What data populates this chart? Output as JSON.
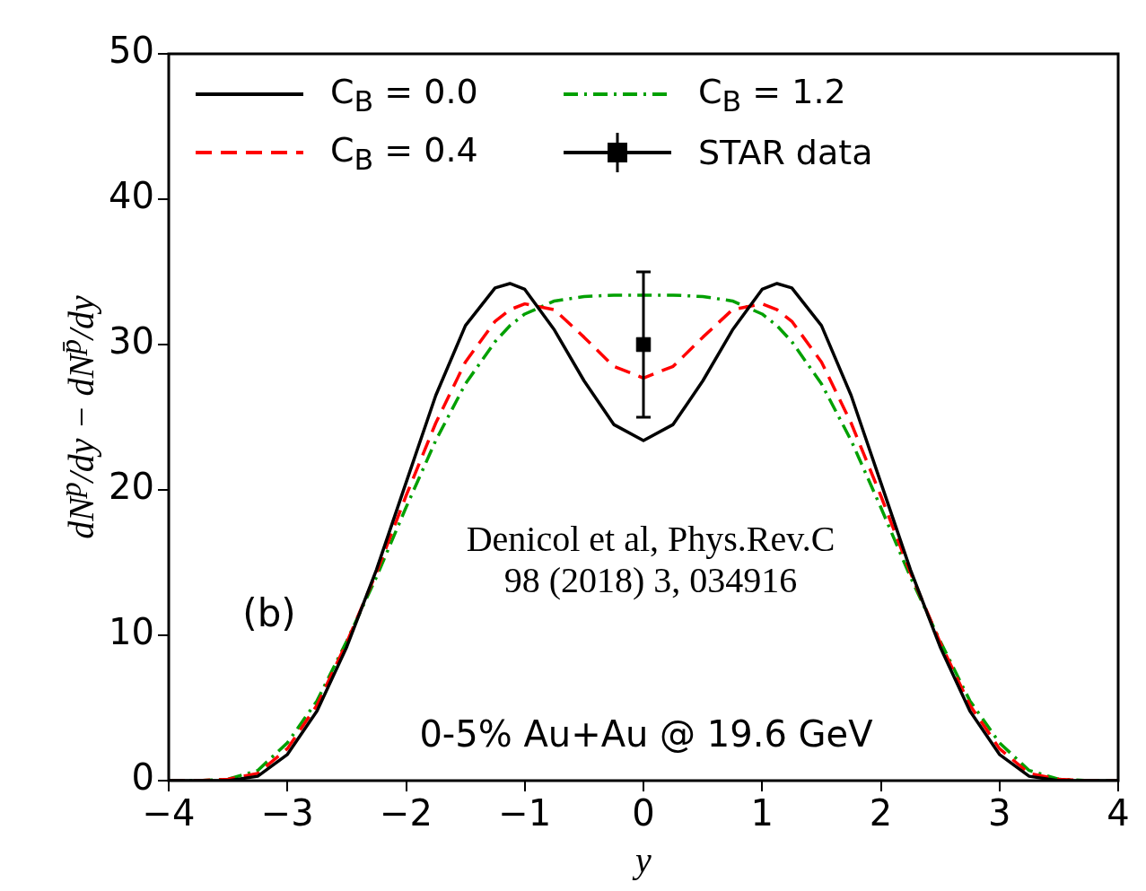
{
  "chart_data": {
    "type": "line",
    "xlabel": "y",
    "ylabel": "dN$^{p}$/dy − dN$^{p̄}$/dy",
    "x": [
      -4,
      -3.75,
      -3.5,
      -3.25,
      -3,
      -2.75,
      -2.5,
      -2.25,
      -2,
      -1.75,
      -1.5,
      -1.25,
      -1.125,
      -1,
      -0.75,
      -0.5,
      -0.25,
      0,
      0.25,
      0.5,
      0.75,
      1,
      1.125,
      1.25,
      1.5,
      1.75,
      2,
      2.25,
      2.5,
      2.75,
      3,
      3.25,
      3.5,
      3.75,
      4
    ],
    "series": [
      {
        "name": "C$_{B}$ = 0.0",
        "color": "#000000",
        "line_style": "solid",
        "values": [
          0,
          0,
          0,
          0.3,
          1.8,
          4.8,
          9.2,
          14.5,
          20.5,
          26.5,
          31.3,
          33.9,
          34.2,
          33.8,
          31.0,
          27.5,
          24.5,
          23.4,
          24.5,
          27.5,
          31.0,
          33.8,
          34.2,
          33.9,
          31.3,
          26.5,
          20.5,
          14.5,
          9.2,
          4.8,
          1.8,
          0.3,
          0,
          0,
          0
        ]
      },
      {
        "name": "C$_{B}$ = 0.4",
        "color": "#ff0000",
        "line_style": "dashed",
        "values": [
          0,
          0,
          0.1,
          0.5,
          2.2,
          5.2,
          9.5,
          14.3,
          19.6,
          24.6,
          28.8,
          31.6,
          32.4,
          32.8,
          32.4,
          30.5,
          28.5,
          27.7,
          28.5,
          30.5,
          32.4,
          32.8,
          32.4,
          31.6,
          28.8,
          24.6,
          19.6,
          14.3,
          9.5,
          5.2,
          2.2,
          0.5,
          0.1,
          0,
          0
        ]
      },
      {
        "name": "C$_{B}$ = 1.2",
        "color": "#00a000",
        "line_style": "dashdot",
        "values": [
          0,
          0,
          0.1,
          0.7,
          2.6,
          5.5,
          9.6,
          14.0,
          18.8,
          23.4,
          27.3,
          30.2,
          31.3,
          32.1,
          33.0,
          33.3,
          33.4,
          33.4,
          33.4,
          33.3,
          33.0,
          32.1,
          31.3,
          30.2,
          27.3,
          23.4,
          18.8,
          14.0,
          9.6,
          5.5,
          2.6,
          0.7,
          0.1,
          0,
          0
        ]
      },
      {
        "name": "STAR data",
        "type": "scatter",
        "marker": "square",
        "color": "#000000",
        "x": [
          0
        ],
        "values": [
          30
        ],
        "errors": [
          5
        ]
      }
    ],
    "xlim": [
      -4,
      4
    ],
    "xticks": [
      -4,
      -3,
      -2,
      -1,
      0,
      1,
      2,
      3,
      4
    ],
    "ylim": [
      0,
      50
    ],
    "yticks": [
      0,
      10,
      20,
      30,
      40,
      50
    ],
    "legend": "top",
    "annotations": [
      "(b)",
      "Denicol et al, Phys.Rev.C 98 (2018) 3, 034916",
      "0-5% Au+Au @ 19.6 GeV"
    ]
  }
}
